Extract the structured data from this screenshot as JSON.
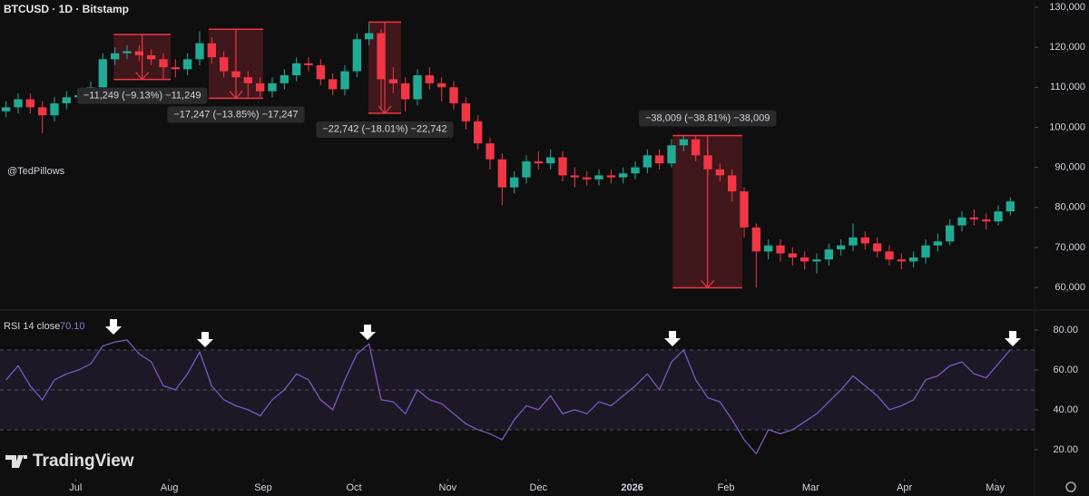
{
  "chart_data": {
    "type": "candlestick",
    "title": "BTCUSD · 1D · Bitstamp",
    "author": "@TedPillows",
    "watermark": "TradingView",
    "up_color": "#22ab94",
    "down_color": "#f23645",
    "xlim": [
      0,
      85.5
    ],
    "xticks": [
      {
        "value": 6.25,
        "label": "Jul"
      },
      {
        "value": 14,
        "label": "Aug"
      },
      {
        "value": 21.75,
        "label": "Sep"
      },
      {
        "value": 29.25,
        "label": "Oct"
      },
      {
        "value": 37,
        "label": "Nov"
      },
      {
        "value": 44.5,
        "label": "Dec"
      },
      {
        "value": 52.25,
        "label": "2026"
      },
      {
        "value": 60,
        "label": "Feb"
      },
      {
        "value": 67,
        "label": "Mar"
      },
      {
        "value": 74.75,
        "label": "Apr"
      },
      {
        "value": 82.25,
        "label": "May"
      }
    ],
    "ylim": [
      54800,
      131800
    ],
    "yticks": [
      {
        "value": 130000,
        "label": "130,000"
      },
      {
        "value": 120000,
        "label": "120,000"
      },
      {
        "value": 110000,
        "label": "110,000"
      },
      {
        "value": 100000,
        "label": "100,000"
      },
      {
        "value": 90000,
        "label": "90,000"
      },
      {
        "value": 80000,
        "label": "80,000"
      },
      {
        "value": 70000,
        "label": "70,000"
      },
      {
        "value": 60000,
        "label": "60,000"
      }
    ],
    "open": [
      104000,
      105000,
      107000,
      105000,
      103000,
      106000,
      107500,
      108000,
      110000,
      117000,
      118500,
      119000,
      118000,
      117000,
      115000,
      114500,
      117000,
      121000,
      117500,
      114000,
      112500,
      111000,
      109000,
      111000,
      113000,
      116000,
      115500,
      112000,
      109500,
      114000,
      122000,
      123500,
      112000,
      111000,
      107000,
      113000,
      111000,
      110000,
      106000,
      101500,
      96000,
      92000,
      85000,
      87500,
      91500,
      91000,
      92500,
      88000,
      87500,
      87000,
      88000,
      87500,
      88500,
      90000,
      93000,
      91000,
      95500,
      97000,
      93000,
      89500,
      88000,
      84000,
      75000,
      69000,
      70500,
      68500,
      67500,
      66500,
      67000,
      69500,
      70500,
      72500,
      71000,
      69000,
      67000,
      66500,
      67500,
      70500,
      71500,
      75500,
      77500,
      77000,
      76500,
      79000
    ],
    "high": [
      106500,
      108500,
      108500,
      106500,
      107500,
      109000,
      109500,
      111500,
      118500,
      120000,
      120500,
      120500,
      119500,
      118500,
      117000,
      118500,
      124000,
      122500,
      119000,
      115500,
      114000,
      112500,
      112500,
      114500,
      117500,
      117500,
      117000,
      113500,
      115500,
      123500,
      126000,
      124500,
      115000,
      112500,
      114500,
      115000,
      112500,
      111500,
      107500,
      103000,
      97500,
      93500,
      89000,
      93000,
      94000,
      94500,
      94000,
      90000,
      89000,
      89500,
      89500,
      90000,
      91500,
      94500,
      94500,
      97000,
      98000,
      98000,
      94500,
      91000,
      89500,
      85000,
      76000,
      72000,
      72000,
      70000,
      69000,
      68500,
      71000,
      72000,
      76000,
      74000,
      72500,
      70500,
      68500,
      69000,
      72000,
      73500,
      77000,
      79000,
      79500,
      78500,
      80500,
      82500
    ],
    "low": [
      102500,
      103500,
      103500,
      98500,
      101500,
      104500,
      106000,
      106500,
      108500,
      115500,
      117000,
      116500,
      115500,
      112000,
      112500,
      113000,
      115500,
      116000,
      112500,
      111000,
      107500,
      107500,
      107500,
      109500,
      111500,
      114000,
      110500,
      108000,
      108000,
      112500,
      120500,
      104500,
      108500,
      104000,
      105500,
      109500,
      106500,
      104500,
      99500,
      94500,
      89500,
      80500,
      83500,
      86000,
      89500,
      89500,
      86500,
      85000,
      85500,
      85500,
      86000,
      86000,
      87000,
      88500,
      89500,
      90000,
      94000,
      91500,
      88000,
      86500,
      81500,
      72500,
      60000,
      67000,
      66500,
      65500,
      64500,
      63500,
      65500,
      68000,
      69000,
      69500,
      67500,
      65500,
      64500,
      65000,
      66000,
      69000,
      70500,
      74000,
      75500,
      74500,
      75500,
      78000
    ],
    "close": [
      105000,
      107000,
      105000,
      103000,
      106000,
      107500,
      108000,
      110000,
      117000,
      118500,
      119000,
      118000,
      117000,
      115000,
      114500,
      117000,
      121000,
      117500,
      114000,
      112500,
      111000,
      109000,
      111000,
      113000,
      116000,
      115500,
      112000,
      109500,
      114000,
      122000,
      123500,
      112000,
      111000,
      107000,
      113000,
      111000,
      110000,
      106000,
      101500,
      96000,
      92000,
      85000,
      87500,
      91500,
      91000,
      92500,
      88000,
      87500,
      87000,
      88000,
      87500,
      88500,
      90000,
      93000,
      91000,
      95500,
      97000,
      93000,
      89500,
      88000,
      84000,
      75000,
      69000,
      70500,
      68500,
      67500,
      66500,
      67000,
      69500,
      70500,
      72500,
      71000,
      69000,
      67000,
      66500,
      67500,
      70500,
      71500,
      75500,
      77500,
      77000,
      76500,
      79000,
      81500
    ],
    "measures": [
      {
        "start": 9.4,
        "end": 14.1,
        "from": 123200,
        "to": 111951,
        "label": "−11,249 (−9.13%) −11,249",
        "label_position": "below"
      },
      {
        "start": 17.25,
        "end": 21.75,
        "from": 124500,
        "to": 107253,
        "label": "−17,247 (−13.85%) −17,247",
        "label_position": "below"
      },
      {
        "start": 30.45,
        "end": 33.15,
        "from": 126270,
        "to": 103528,
        "label": "−22,742 (−18.01%) −22,742",
        "label_position": "below"
      },
      {
        "start": 55.6,
        "end": 61.35,
        "from": 97935,
        "to": 59926,
        "label": "−38,009 (−38.81%) −38,009",
        "label_position": "above"
      }
    ],
    "rsi": {
      "name": "RSI 14 close",
      "value_label": "70.10",
      "color": "#7e57c2",
      "ylim": [
        6.8,
        88.6
      ],
      "yticks": [
        {
          "value": 80,
          "label": "80.00"
        },
        {
          "value": 60,
          "label": "60.00"
        },
        {
          "value": 40,
          "label": "40.00"
        },
        {
          "value": 20,
          "label": "20.00"
        }
      ],
      "levels": [
        70,
        50,
        30
      ],
      "values": [
        55,
        62,
        52,
        45,
        55,
        58,
        60,
        63,
        72,
        74,
        75,
        68,
        64,
        52,
        50,
        58,
        69,
        52,
        45,
        42,
        40,
        37,
        45,
        50,
        58,
        55,
        45,
        40,
        55,
        68,
        73,
        45,
        44,
        38,
        50,
        45,
        43,
        38,
        33,
        30,
        28,
        25,
        35,
        42,
        40,
        47,
        38,
        40,
        38,
        44,
        42,
        47,
        52,
        58,
        50,
        64,
        70,
        55,
        46,
        44,
        35,
        25,
        18,
        30,
        28,
        30,
        34,
        38,
        44,
        50,
        57,
        52,
        47,
        40,
        42,
        45,
        55,
        57,
        62,
        64,
        58,
        56,
        63,
        70.1
      ]
    }
  }
}
